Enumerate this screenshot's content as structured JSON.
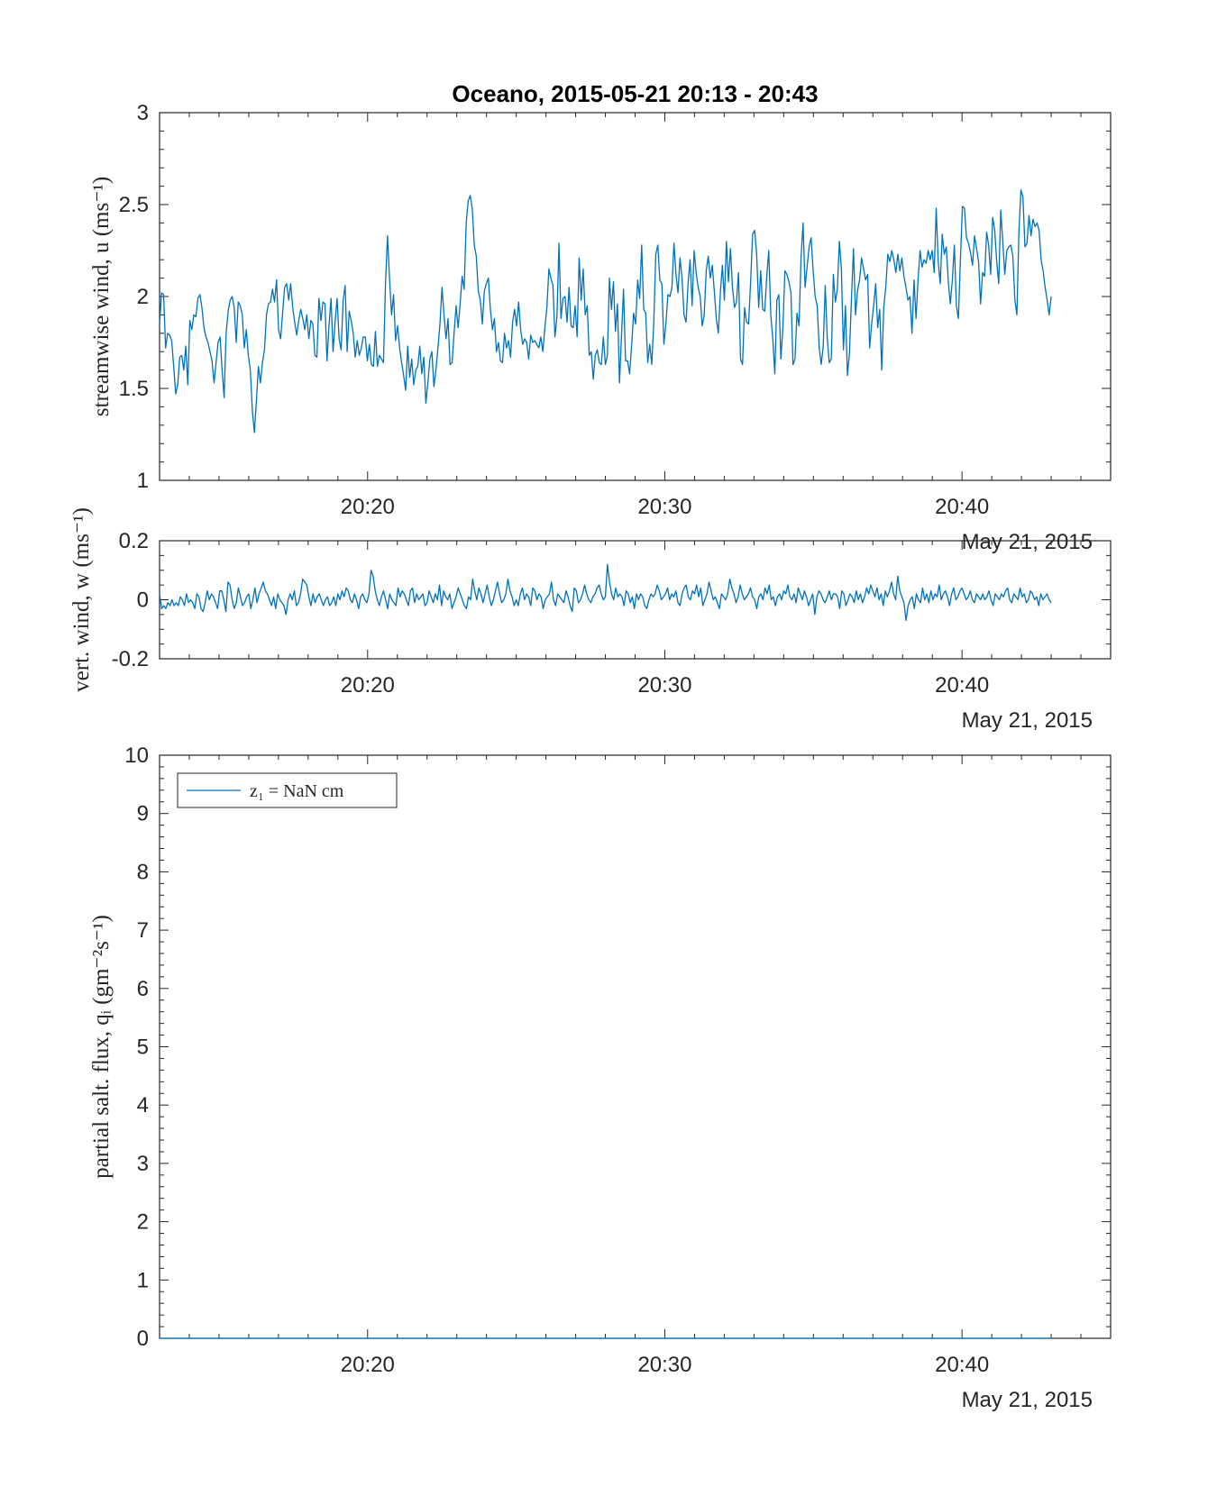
{
  "figure": {
    "title": "Oceano, 2015-05-21 20:13 - 20:43",
    "line_color": "#0072BD"
  },
  "chart_data": [
    {
      "type": "line",
      "ylabel": "streamwise wind, u (ms⁻¹)",
      "xlim": [
        "20:13",
        "20:45"
      ],
      "ylim": [
        1,
        3
      ],
      "x_ticks": [
        "20:20",
        "20:30",
        "20:40"
      ],
      "y_ticks": [
        "1",
        "1.5",
        "2",
        "2.5",
        "3"
      ],
      "x_secondary_label": "May 21, 2015",
      "series": [
        {
          "x_start": "20:13",
          "x_end": "20:43",
          "values": [
            1.85,
            2.02,
            2.01,
            1.72,
            1.8,
            1.79,
            1.76,
            1.62,
            1.47,
            1.52,
            1.67,
            1.68,
            1.6,
            1.73,
            1.52,
            1.87,
            1.82,
            1.9,
            1.89,
            1.99,
            2.01,
            1.94,
            1.83,
            1.78,
            1.75,
            1.7,
            1.65,
            1.53,
            1.64,
            1.75,
            1.78,
            1.6,
            1.45,
            1.8,
            1.92,
            1.98,
            2.0,
            1.94,
            1.75,
            1.97,
            1.95,
            1.9,
            1.72,
            1.82,
            1.68,
            1.6,
            1.38,
            1.26,
            1.43,
            1.62,
            1.53,
            1.64,
            1.71,
            1.9,
            1.96,
            1.97,
            2.04,
            1.97,
            2.09,
            1.82,
            1.77,
            1.91,
            2.05,
            2.07,
            1.98,
            2.07,
            1.94,
            1.86,
            1.79,
            1.87,
            1.93,
            1.88,
            1.82,
            1.9,
            1.77,
            1.87,
            1.85,
            1.68,
            1.67,
            1.99,
            1.87,
            1.97,
            1.96,
            1.65,
            1.84,
            1.99,
            1.7,
            1.86,
            1.99,
            1.77,
            1.71,
            1.98,
            2.06,
            1.7,
            1.92,
            1.87,
            1.8,
            1.67,
            1.76,
            1.68,
            1.72,
            1.78,
            1.78,
            1.65,
            1.74,
            1.63,
            1.62,
            1.81,
            1.62,
            1.68,
            1.66,
            1.64,
            2.07,
            2.33,
            2.1,
            1.9,
            2.01,
            1.76,
            1.84,
            1.72,
            1.64,
            1.57,
            1.49,
            1.73,
            1.56,
            1.66,
            1.52,
            1.6,
            1.62,
            1.73,
            1.58,
            1.67,
            1.42,
            1.53,
            1.66,
            1.7,
            1.51,
            1.6,
            1.72,
            1.85,
            2.05,
            1.9,
            1.77,
            1.88,
            1.63,
            1.64,
            1.8,
            1.95,
            1.83,
            1.96,
            2.11,
            2.04,
            2.4,
            2.52,
            2.55,
            2.48,
            2.28,
            2.22,
            2.03,
            1.98,
            1.85,
            2.03,
            2.07,
            2.1,
            1.93,
            1.82,
            1.88,
            1.7,
            1.75,
            1.65,
            1.64,
            1.8,
            1.72,
            1.76,
            1.67,
            1.86,
            1.93,
            1.84,
            1.97,
            1.82,
            1.74,
            1.77,
            1.75,
            1.66,
            1.79,
            1.75,
            1.76,
            1.74,
            1.72,
            1.78,
            1.7,
            1.83,
            1.94,
            2.15,
            2.1,
            2.06,
            1.78,
            1.89,
            2.29,
            1.88,
            1.99,
            2.0,
            1.86,
            2.05,
            1.84,
            1.83,
            1.95,
            1.78,
            2.21,
            1.98,
            2.15,
            1.9,
            1.95,
            1.68,
            1.7,
            1.55,
            1.68,
            1.71,
            1.64,
            1.63,
            1.78,
            1.63,
            1.68,
            2.1,
            1.93,
            2.08,
            1.81,
            1.96,
            1.53,
            1.79,
            2.04,
            1.65,
            1.65,
            1.58,
            1.73,
            1.91,
            1.85,
            2.09,
            1.99,
            2.28,
            1.93,
            1.91,
            1.64,
            1.74,
            1.63,
            1.86,
            2.23,
            2.28,
            2.09,
            2.07,
            1.74,
            1.85,
            2.01,
            2.0,
            2.05,
            2.29,
            2.12,
            2.02,
            2.21,
            2.1,
            1.9,
            1.86,
            2.07,
            2.2,
            1.95,
            2.25,
            2.13,
            2.05,
            2.0,
            1.84,
            1.9,
            2.14,
            2.22,
            2.1,
            2.17,
            2.03,
            1.88,
            1.8,
            2.02,
            2.17,
            1.98,
            2.3,
            2.08,
            2.26,
            2.05,
            1.94,
            1.97,
            2.13,
            1.66,
            1.63,
            1.94,
            1.86,
            1.85,
            2.08,
            2.34,
            2.36,
            2.23,
            1.94,
            2.14,
            1.93,
            1.92,
            2.11,
            2.25,
            1.9,
            1.77,
            1.58,
            1.98,
            2.01,
            1.66,
            1.83,
            2.14,
            2.12,
            2.08,
            2.02,
            1.63,
            1.66,
            1.91,
            1.84,
            2.21,
            2.4,
            2.05,
            2.16,
            2.27,
            2.32,
            2.14,
            2.0,
            1.95,
            1.72,
            1.63,
            1.73,
            2.06,
            1.77,
            1.64,
            1.66,
            2.12,
            1.97,
            2.04,
            2.3,
            2.15,
            1.71,
            1.95,
            1.57,
            1.69,
            1.99,
            2.26,
            1.9,
            2.03,
            2.09,
            2.21,
            2.15,
            2.09,
            2.12,
            1.72,
            1.85,
            1.95,
            2.07,
            1.83,
            1.93,
            1.6,
            1.94,
            2.05,
            2.23,
            2.19,
            2.25,
            2.2,
            2.13,
            2.23,
            2.14,
            2.21,
            2.11,
            2.05,
            1.98,
            2.0,
            1.8,
            2.09,
            1.88,
            2.09,
            2.25,
            2.16,
            2.2,
            2.18,
            2.25,
            2.2,
            2.25,
            2.13,
            2.48,
            2.19,
            2.07,
            2.34,
            2.23,
            2.27,
            2.08,
            1.96,
            2.09,
            2.28,
            1.95,
            1.88,
            2.2,
            2.49,
            2.48,
            2.32,
            2.29,
            2.24,
            2.17,
            2.33,
            2.26,
            2.19,
            1.96,
            2.13,
            2.11,
            2.35,
            2.28,
            2.12,
            2.43,
            2.36,
            2.19,
            2.07,
            2.47,
            2.3,
            2.12,
            2.25,
            2.27,
            2.28,
            2.22,
            1.98,
            1.9,
            2.35,
            2.58,
            2.54,
            2.27,
            2.29,
            2.44,
            2.33,
            2.42,
            2.38,
            2.4,
            2.36,
            2.2,
            2.14,
            2.05,
            1.98,
            1.9,
            2.0
          ]
        }
      ]
    },
    {
      "type": "line",
      "ylabel": "vert. wind, w (ms⁻¹)",
      "xlim": [
        "20:13",
        "20:45"
      ],
      "ylim": [
        -0.2,
        0.2
      ],
      "x_ticks": [
        "20:20",
        "20:30",
        "20:40"
      ],
      "y_ticks": [
        "-0.2",
        "0",
        "0.2"
      ],
      "x_secondary_label": "May 21, 2015",
      "series": [
        {
          "x_start": "20:13",
          "x_end": "20:43",
          "values": [
            0.02,
            -0.03,
            -0.02,
            -0.03,
            -0.01,
            -0.02,
            0.0,
            -0.02,
            -0.01,
            -0.02,
            0.01,
            0.0,
            -0.02,
            0.02,
            -0.01,
            0.0,
            -0.01,
            -0.03,
            0.02,
            0.01,
            -0.03,
            -0.04,
            -0.01,
            0.03,
            0.0,
            0.02,
            0.01,
            -0.01,
            -0.03,
            0.03,
            0.03,
            0.0,
            -0.04,
            0.06,
            0.05,
            0.0,
            -0.03,
            -0.01,
            0.04,
            0.01,
            -0.02,
            -0.01,
            0.01,
            0.02,
            -0.03,
            0.0,
            0.04,
            -0.01,
            0.02,
            0.04,
            0.06,
            0.03,
            0.02,
            0.0,
            -0.02,
            0.01,
            -0.03,
            0.02,
            0.0,
            -0.01,
            -0.02,
            -0.05,
            0.0,
            0.02,
            0.0,
            0.03,
            -0.02,
            -0.01,
            0.02,
            0.07,
            0.06,
            0.05,
            0.01,
            -0.02,
            0.02,
            -0.01,
            0.01,
            0.02,
            0.0,
            -0.02,
            0.0,
            0.01,
            -0.02,
            -0.01,
            0.01,
            -0.02,
            0.02,
            0.0,
            0.03,
            0.01,
            0.04,
            0.03,
            0.0,
            -0.01,
            0.02,
            0.0,
            -0.03,
            0.01,
            0.02,
            0.0,
            -0.01,
            0.02,
            0.1,
            0.08,
            0.03,
            0.0,
            -0.02,
            0.01,
            0.03,
            0.0,
            -0.03,
            0.02,
            0.0,
            -0.01,
            -0.02,
            0.04,
            0.01,
            0.03,
            0.02,
            0.0,
            -0.02,
            0.03,
            0.04,
            -0.01,
            0.02,
            0.0,
            0.01,
            0.02,
            -0.02,
            -0.01,
            0.03,
            0.01,
            -0.01,
            0.02,
            0.0,
            0.05,
            -0.02,
            0.03,
            0.01,
            0.0,
            0.02,
            -0.03,
            -0.01,
            0.01,
            0.04,
            0.02,
            0.0,
            -0.02,
            -0.03,
            0.01,
            0.0,
            0.07,
            0.03,
            0.0,
            0.04,
            0.02,
            -0.01,
            0.02,
            0.05,
            0.01,
            -0.02,
            0.0,
            0.03,
            0.06,
            0.02,
            -0.01,
            0.0,
            0.02,
            0.07,
            0.03,
            0.01,
            -0.02,
            0.0,
            -0.02,
            0.02,
            0.04,
            0.0,
            0.02,
            0.01,
            -0.02,
            0.04,
            0.03,
            0.0,
            0.02,
            0.01,
            -0.03,
            0.0,
            0.01,
            0.02,
            0.06,
            0.0,
            -0.02,
            0.02,
            0.01,
            0.0,
            -0.01,
            0.03,
            0.01,
            -0.02,
            -0.04,
            0.04,
            0.03,
            -0.01,
            0.0,
            0.02,
            0.05,
            0.02,
            0.0,
            -0.01,
            0.01,
            0.02,
            0.04,
            0.05,
            0.02,
            0.0,
            0.01,
            0.12,
            0.06,
            0.02,
            0.0,
            0.04,
            0.01,
            0.02,
            0.01,
            -0.02,
            0.03,
            0.02,
            -0.01,
            0.01,
            -0.03,
            0.02,
            0.0,
            0.02,
            0.01,
            -0.02,
            -0.03,
            0.0,
            0.02,
            0.01,
            0.02,
            0.05,
            0.03,
            0.0,
            0.01,
            0.02,
            0.04,
            0.0,
            0.02,
            0.01,
            0.03,
            -0.01,
            -0.02,
            0.02,
            0.04,
            0.05,
            0.01,
            0.0,
            0.03,
            0.02,
            0.05,
            0.01,
            0.04,
            -0.02,
            0.0,
            0.02,
            0.06,
            0.03,
            0.0,
            0.01,
            -0.01,
            -0.03,
            0.02,
            0.01,
            0.0,
            0.02,
            0.07,
            0.04,
            0.02,
            -0.01,
            0.01,
            0.05,
            0.02,
            0.0,
            0.01,
            0.02,
            0.04,
            0.01,
            0.0,
            -0.03,
            0.01,
            0.02,
            0.0,
            0.04,
            0.02,
            0.05,
            0.0,
            0.01,
            -0.02,
            0.01,
            0.02,
            0.0,
            0.03,
            0.02,
            0.05,
            0.01,
            0.0,
            0.02,
            -0.01,
            0.04,
            0.02,
            0.0,
            0.03,
            0.01,
            -0.02,
            0.0,
            0.02,
            -0.05,
            0.01,
            0.03,
            0.02,
            0.0,
            -0.01,
            0.01,
            0.03,
            0.0,
            0.02,
            0.02,
            0.01,
            -0.03,
            0.03,
            0.02,
            -0.02,
            0.0,
            0.02,
            0.01,
            -0.01,
            0.03,
            0.0,
            0.02,
            -0.01,
            0.01,
            0.04,
            0.02,
            0.05,
            0.03,
            0.01,
            0.04,
            0.0,
            0.02,
            -0.02,
            0.03,
            0.01,
            0.03,
            0.06,
            0.02,
            0.0,
            0.08,
            0.03,
            0.01,
            -0.01,
            -0.07,
            -0.02,
            0.0,
            0.01,
            -0.03,
            0.02,
            0.0,
            -0.01,
            0.04,
            0.0,
            0.02,
            -0.01,
            0.03,
            0.0,
            0.02,
            0.01,
            0.05,
            0.0,
            0.02,
            0.03,
            0.01,
            -0.02,
            0.02,
            0.04,
            0.0,
            0.01,
            0.03,
            0.04,
            0.02,
            0.0,
            0.01,
            0.03,
            0.0,
            -0.01,
            0.02,
            0.01,
            0.0,
            0.02,
            0.0,
            0.01,
            0.03,
            0.0,
            -0.02,
            0.02,
            0.01,
            0.0,
            0.02,
            0.01,
            0.03,
            0.04,
            0.0,
            -0.01,
            0.02,
            0.01,
            0.0,
            0.04,
            0.01,
            0.02,
            -0.01,
            0.0,
            0.03,
            0.02,
            0.0,
            0.01,
            -0.02,
            0.02,
            0.0,
            0.01,
            0.02,
            0.0,
            -0.01
          ]
        }
      ]
    },
    {
      "type": "line",
      "ylabel": "partial salt. flux, qᵢ (gm⁻²s⁻¹)",
      "xlim": [
        "20:13",
        "20:45"
      ],
      "ylim": [
        0,
        10
      ],
      "x_ticks": [
        "20:20",
        "20:30",
        "20:40"
      ],
      "y_ticks": [
        "0",
        "1",
        "2",
        "3",
        "4",
        "5",
        "6",
        "7",
        "8",
        "9",
        "10"
      ],
      "x_secondary_label": "May 21, 2015",
      "legend": {
        "placement": "top-left",
        "entries": [
          "z₁ = NaN cm"
        ]
      },
      "series": [
        {
          "name": "z₁ = NaN cm",
          "x": [
            "20:13",
            "20:43"
          ],
          "values": [
            0,
            0
          ]
        }
      ]
    }
  ]
}
